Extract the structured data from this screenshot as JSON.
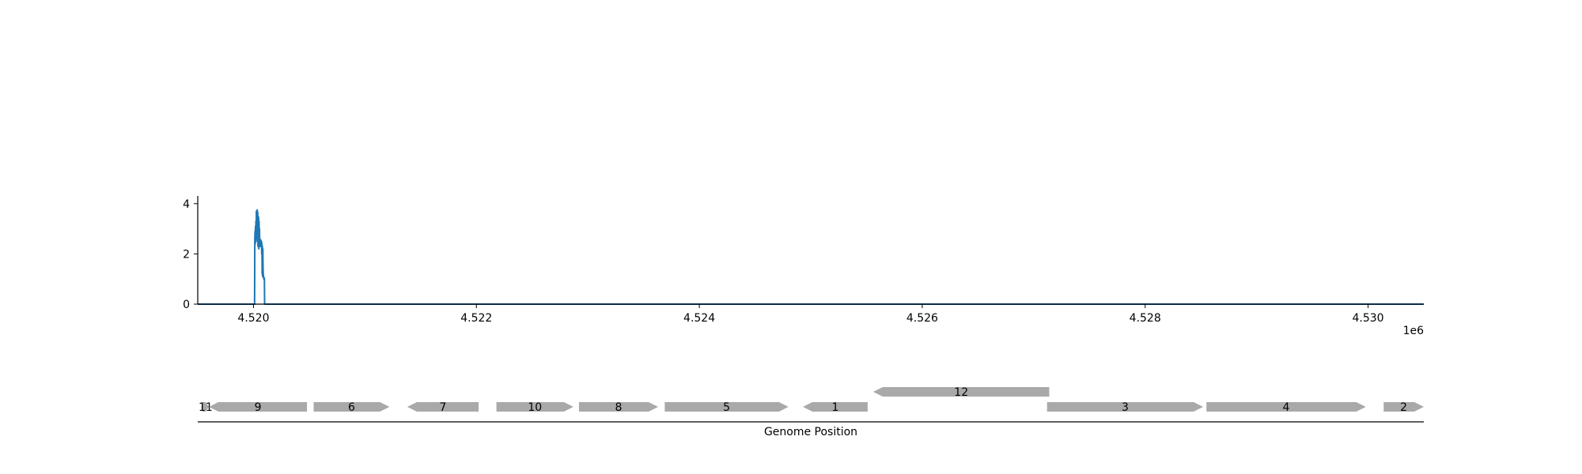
{
  "chart_data": [
    {
      "type": "line",
      "title": "",
      "xlabel": "",
      "ylabel": "",
      "x_offset_text": "1e6",
      "xlim": [
        4519500,
        4530500
      ],
      "ylim": [
        0,
        4.15
      ],
      "x_ticks": [
        4520000,
        4522000,
        4524000,
        4526000,
        4528000,
        4530000
      ],
      "x_tick_labels": [
        "4.520",
        "4.522",
        "4.524",
        "4.526",
        "4.528",
        "4.530"
      ],
      "y_ticks": [
        0,
        2,
        4
      ],
      "y_tick_labels": [
        "0",
        "2",
        "4"
      ],
      "grid": false,
      "line_color": "#1f77b4",
      "x": [
        4519500,
        4520010,
        4520012,
        4520014,
        4520016,
        4520018,
        4520020,
        4520022,
        4520024,
        4520026,
        4520028,
        4520030,
        4520032,
        4520034,
        4520036,
        4520038,
        4520040,
        4520042,
        4520044,
        4520046,
        4520048,
        4520050,
        4520052,
        4520054,
        4520056,
        4520058,
        4520060,
        4520062,
        4520064,
        4520066,
        4520068,
        4520070,
        4520072,
        4520074,
        4520076,
        4520078,
        4520080,
        4520082,
        4520084,
        4520086,
        4520088,
        4520090,
        4520092,
        4520094,
        4520096,
        4520098,
        4520100,
        4520102,
        4520104,
        4520106,
        4520108,
        4520110,
        4530500
      ],
      "y": [
        0,
        0,
        2.6,
        2.9,
        2.4,
        3.1,
        2.7,
        3.3,
        2.5,
        3.7,
        3.0,
        3.6,
        2.6,
        3.75,
        3.2,
        3.65,
        2.3,
        3.5,
        2.9,
        3.45,
        2.2,
        3.3,
        2.7,
        3.0,
        2.3,
        2.6,
        2.4,
        2.5,
        2.3,
        2.55,
        2.4,
        2.45,
        2.5,
        2.0,
        2.4,
        1.2,
        2.3,
        1.1,
        2.2,
        1.4,
        1.2,
        1.1,
        1.0,
        1.0,
        1.05,
        1.0,
        0,
        0,
        0,
        0,
        0,
        0,
        0
      ]
    },
    {
      "type": "gene-track",
      "xlabel": "Genome Position",
      "genes": [
        {
          "label": "11",
          "start": 4519540,
          "end": 4519600,
          "strand": "+",
          "row": 0
        },
        {
          "label": "9",
          "start": 4519600,
          "end": 4520480,
          "strand": "-",
          "row": 0
        },
        {
          "label": "6",
          "start": 4520540,
          "end": 4521220,
          "strand": "+",
          "row": 0
        },
        {
          "label": "7",
          "start": 4521380,
          "end": 4522020,
          "strand": "-",
          "row": 0
        },
        {
          "label": "10",
          "start": 4522180,
          "end": 4522870,
          "strand": "+",
          "row": 0
        },
        {
          "label": "8",
          "start": 4522920,
          "end": 4523630,
          "strand": "+",
          "row": 0
        },
        {
          "label": "5",
          "start": 4523690,
          "end": 4524800,
          "strand": "+",
          "row": 0
        },
        {
          "label": "1",
          "start": 4524930,
          "end": 4525510,
          "strand": "-",
          "row": 0
        },
        {
          "label": "12",
          "start": 4525560,
          "end": 4527140,
          "strand": "-",
          "row": 1
        },
        {
          "label": "3",
          "start": 4527120,
          "end": 4528520,
          "strand": "+",
          "row": 0
        },
        {
          "label": "4",
          "start": 4528550,
          "end": 4529980,
          "strand": "+",
          "row": 0
        },
        {
          "label": "2",
          "start": 4530140,
          "end": 4530500,
          "strand": "+",
          "row": 0
        }
      ],
      "gene_color": "#a9a9a9"
    }
  ]
}
